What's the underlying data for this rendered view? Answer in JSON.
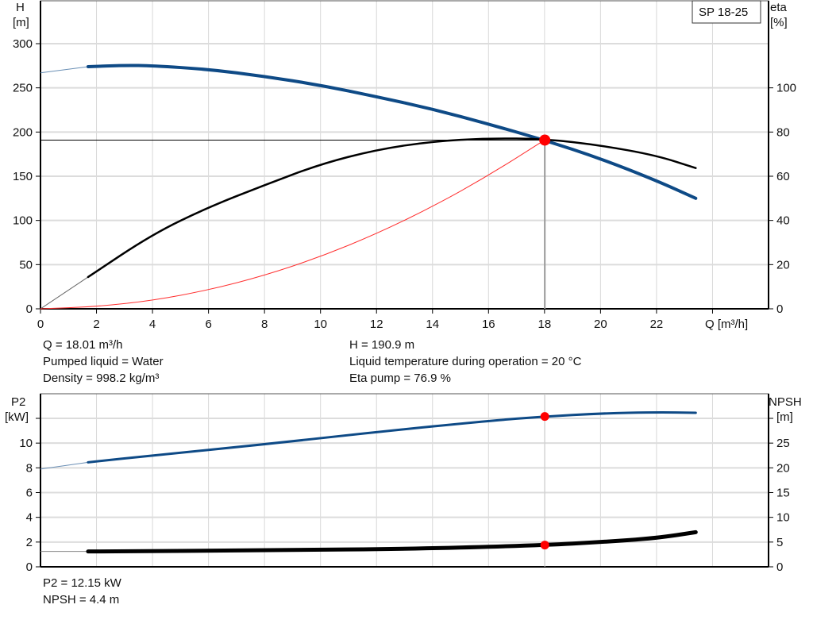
{
  "chart_data": [
    {
      "type": "line",
      "model_label": "SP 18-25",
      "xlabel": "Q [m³/h]",
      "ylabel_left": [
        "H",
        "[m]"
      ],
      "ylabel_right": [
        "eta",
        "[%]"
      ],
      "xlim": [
        0,
        26
      ],
      "ylim_left": [
        0,
        300
      ],
      "ylim_right": [
        0,
        120
      ],
      "x_ticks": [
        0,
        2,
        4,
        6,
        8,
        10,
        12,
        14,
        16,
        18,
        20,
        22
      ],
      "y_ticks_left": [
        0,
        50,
        100,
        150,
        200,
        250,
        300
      ],
      "y_ticks_right": [
        0,
        20,
        40,
        60,
        80,
        100
      ],
      "grid": true,
      "series": [
        {
          "key": "H",
          "axis": "left",
          "color": "#0e4a86",
          "x": [
            0,
            1.7,
            3,
            4,
            6,
            8,
            10,
            12,
            14,
            16,
            18,
            20,
            22,
            23.4
          ],
          "y": [
            267,
            274,
            275.5,
            275,
            271,
            263,
            253,
            240,
            226,
            209,
            190.9,
            170,
            145,
            125
          ]
        },
        {
          "key": "eta",
          "axis": "right",
          "color": "#000000",
          "x": [
            0,
            1.7,
            4,
            6,
            8,
            10,
            12,
            14,
            16,
            18,
            20,
            22,
            23.4
          ],
          "y": [
            0,
            14.4,
            33.8,
            46,
            56,
            65.5,
            72,
            75.8,
            77.2,
            76.9,
            74,
            69.4,
            63.7
          ]
        },
        {
          "key": "system",
          "axis": "left",
          "color": "#ff3030",
          "x": [
            0,
            2,
            4,
            6,
            8,
            10,
            12,
            14,
            16,
            18
          ],
          "y": [
            0,
            2.4,
            9.4,
            21.2,
            37.7,
            58.9,
            84.8,
            115.5,
            150.8,
            190.9
          ]
        }
      ],
      "duty_point": {
        "Q": 18.01,
        "H": 190.9,
        "eta": 76.9,
        "color": "#ff0000"
      },
      "info": {
        "q": "Q = 18.01 m³/h",
        "liquid": "Pumped liquid = Water",
        "density": "Density = 998.2 kg/m³",
        "h": "H = 190.9 m",
        "temp": "Liquid temperature during operation = 20 °C",
        "eta": "Eta pump = 76.9 %"
      }
    },
    {
      "type": "line",
      "ylabel_left": [
        "P2",
        "[kW]"
      ],
      "ylabel_right": [
        "NPSH",
        "[m]"
      ],
      "xlim": [
        0,
        26
      ],
      "ylim_left": [
        0,
        12
      ],
      "ylim_right": [
        0,
        30
      ],
      "y_ticks_left": [
        0,
        2,
        4,
        6,
        8,
        10
      ],
      "y_ticks_right": [
        0,
        5,
        10,
        15,
        20,
        25
      ],
      "grid": true,
      "series": [
        {
          "key": "P2",
          "axis": "left",
          "color": "#0e4a86",
          "x": [
            0,
            1.7,
            4,
            8,
            12,
            16,
            18,
            20,
            22,
            23.4
          ],
          "y": [
            7.9,
            8.45,
            9.0,
            9.9,
            10.9,
            11.8,
            12.15,
            12.4,
            12.5,
            12.45
          ]
        },
        {
          "key": "NPSH",
          "axis": "right",
          "color": "#000000",
          "x": [
            0,
            1.7,
            8,
            14,
            18,
            20,
            22,
            23.4
          ],
          "y": [
            3.1,
            3.1,
            3.3,
            3.7,
            4.4,
            5.0,
            5.8,
            7.0
          ]
        }
      ],
      "duty_point": {
        "Q": 18.01,
        "P2": 12.15,
        "NPSH": 4.4,
        "color": "#ff0000"
      },
      "info": {
        "p2": "P2 = 12.15 kW",
        "npsh": "NPSH = 4.4 m"
      }
    }
  ]
}
